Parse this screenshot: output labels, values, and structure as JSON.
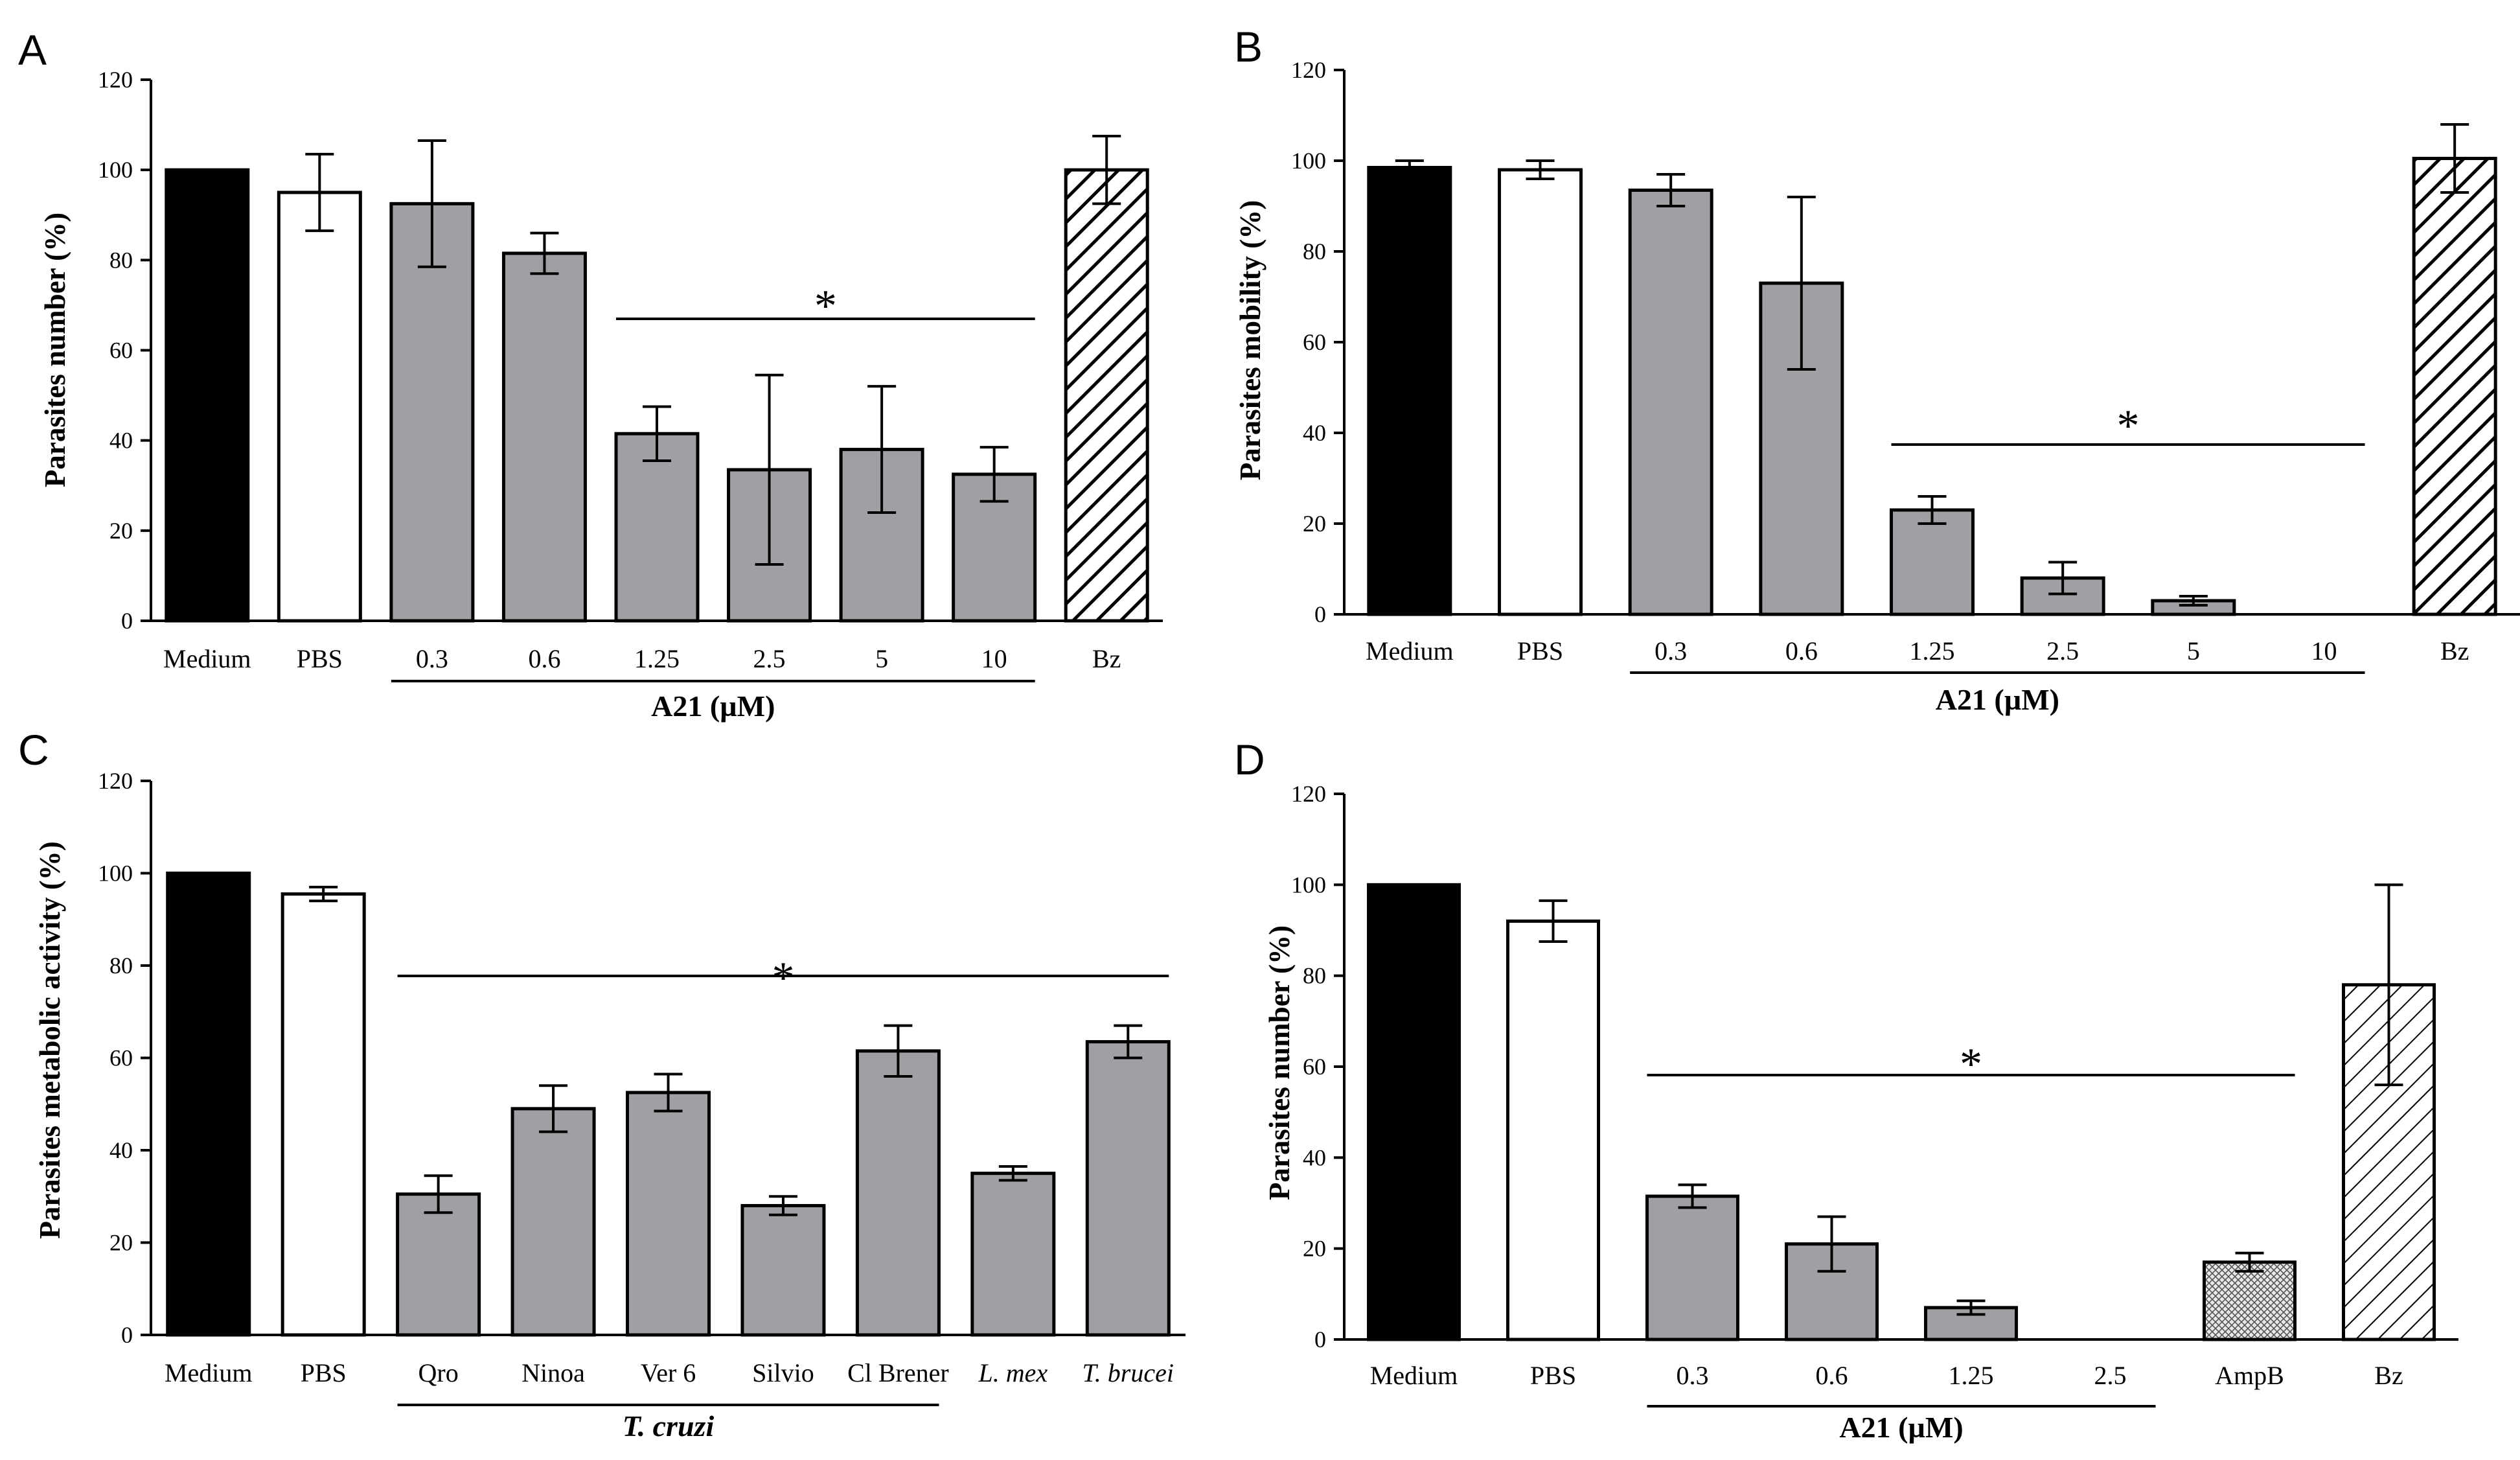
{
  "colors": {
    "black": "#000000",
    "white": "#ffffff",
    "gray": "#a0a0a4"
  },
  "chart_data": [
    {
      "panel": "A",
      "type": "bar",
      "ylabel": "Parasites number (%)",
      "xlabel": "A21 (µM)",
      "ylim": [
        0,
        120
      ],
      "yticks": [
        0,
        20,
        40,
        60,
        80,
        100,
        120
      ],
      "categories": [
        "Medium",
        "PBS",
        "0.3",
        "0.6",
        "1.25",
        "2.5",
        "5",
        "10",
        "Bz"
      ],
      "values": [
        100,
        95,
        92.5,
        81.5,
        41.5,
        33.5,
        38,
        32.5,
        100
      ],
      "errors": [
        0,
        8.5,
        14,
        4.5,
        6,
        21,
        14,
        6,
        7.5
      ],
      "fills": [
        "black",
        "white",
        "gray",
        "gray",
        "gray",
        "gray",
        "gray",
        "gray",
        "hatch"
      ],
      "significance": {
        "label": "*",
        "y": 67,
        "from": 4,
        "to": 7
      },
      "group_line": {
        "from": 2,
        "to": 7
      }
    },
    {
      "panel": "B",
      "type": "bar",
      "ylabel": "Parasites mobility (%)",
      "xlabel": "A21 (µM)",
      "ylim": [
        0,
        120
      ],
      "yticks": [
        0,
        20,
        40,
        60,
        80,
        100,
        120
      ],
      "categories": [
        "Medium",
        "PBS",
        "0.3",
        "0.6",
        "1.25",
        "2.5",
        "5",
        "10",
        "Bz"
      ],
      "values": [
        98.5,
        98,
        93.5,
        73,
        23,
        8,
        3,
        0,
        100.5
      ],
      "errors": [
        1.5,
        2,
        3.5,
        19,
        3,
        3.5,
        1,
        0,
        7.5
      ],
      "fills": [
        "black",
        "white",
        "gray",
        "gray",
        "gray",
        "gray",
        "gray",
        "gray",
        "hatch"
      ],
      "significance": {
        "label": "*",
        "y": 37,
        "from": 4,
        "to": 7
      },
      "group_line": {
        "from": 2,
        "to": 7
      }
    },
    {
      "panel": "C",
      "type": "bar",
      "ylabel": "Parasites metabolic activity (%)",
      "xlabel": "T. cruzi",
      "ylim": [
        0,
        120
      ],
      "yticks": [
        0,
        20,
        40,
        60,
        80,
        100,
        120
      ],
      "categories": [
        "Medium",
        "PBS",
        "Qro",
        "Ninoa",
        "Ver 6",
        "Silvio",
        "Cl Brener",
        "L. mex",
        "T. brucei"
      ],
      "italic_categories": [
        "L. mex",
        "T. brucei"
      ],
      "values": [
        100,
        95.5,
        30.5,
        49,
        52.5,
        28,
        61.5,
        35,
        63.5
      ],
      "errors": [
        0,
        1.5,
        4,
        5,
        4,
        2,
        5.5,
        1.5,
        3.5
      ],
      "fills": [
        "black",
        "white",
        "gray",
        "gray",
        "gray",
        "gray",
        "gray",
        "gray",
        "gray"
      ],
      "significance": {
        "label": "*",
        "y": 78.5,
        "from": 2,
        "to": 8
      },
      "group_line": {
        "from": 2,
        "to": 6
      }
    },
    {
      "panel": "D",
      "type": "bar",
      "ylabel": "Parasites number (%)",
      "xlabel": "A21 (µM)",
      "ylim": [
        0,
        120
      ],
      "yticks": [
        0,
        20,
        40,
        60,
        80,
        100,
        120
      ],
      "categories": [
        "Medium",
        "PBS",
        "0.3",
        "0.6",
        "1.25",
        "2.5",
        "AmpB",
        "Bz"
      ],
      "values": [
        100,
        92,
        31.5,
        21,
        7,
        0,
        17,
        78
      ],
      "errors": [
        0,
        4.5,
        2.5,
        6,
        1.5,
        0,
        2,
        22
      ],
      "fills": [
        "black",
        "white",
        "gray",
        "gray",
        "gray",
        "gray",
        "dense",
        "hatch2"
      ],
      "significance": {
        "label": "*",
        "y": 58.5,
        "from": 2,
        "to": 6
      },
      "group_line": {
        "from": 2,
        "to": 5
      }
    }
  ]
}
